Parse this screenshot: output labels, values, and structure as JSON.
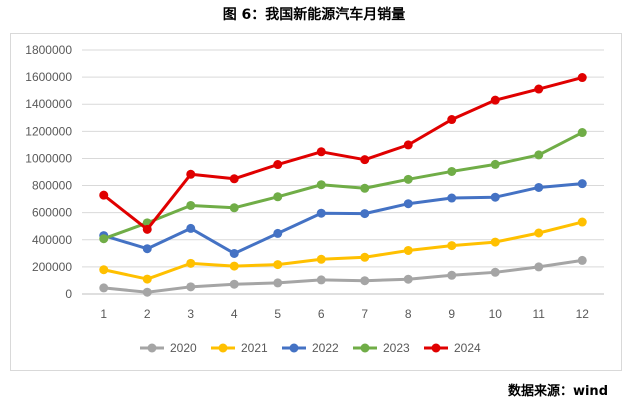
{
  "title": "图 6：我国新能源汽车月销量",
  "source": "数据来源：wind",
  "chart_data": {
    "type": "line",
    "title": "图 6：我国新能源汽车月销量",
    "xlabel": "",
    "ylabel": "",
    "categories": [
      "1",
      "2",
      "3",
      "4",
      "5",
      "6",
      "7",
      "8",
      "9",
      "10",
      "11",
      "12"
    ],
    "ylim": [
      0,
      1800000
    ],
    "yticks": [
      "0",
      "200000",
      "400000",
      "600000",
      "800000",
      "1000000",
      "1200000",
      "1400000",
      "1600000",
      "1800000"
    ],
    "grid": true,
    "legend_position": "bottom",
    "series": [
      {
        "name": "2020",
        "color": "#a5a5a5",
        "values": [
          45000,
          13000,
          53000,
          72000,
          82000,
          104000,
          98000,
          109000,
          138000,
          160000,
          200000,
          248000
        ]
      },
      {
        "name": "2021",
        "color": "#ffc000",
        "values": [
          179000,
          110000,
          226000,
          206000,
          217000,
          256000,
          271000,
          321000,
          357000,
          383000,
          450000,
          531000
        ]
      },
      {
        "name": "2022",
        "color": "#4472c4",
        "values": [
          431000,
          334000,
          484000,
          299000,
          447000,
          596000,
          593000,
          666000,
          708000,
          714000,
          786000,
          814000
        ]
      },
      {
        "name": "2023",
        "color": "#70ad47",
        "values": [
          408000,
          525000,
          653000,
          636000,
          717000,
          806000,
          780000,
          846000,
          904000,
          956000,
          1026000,
          1191000
        ]
      },
      {
        "name": "2024",
        "color": "#e00000",
        "values": [
          729000,
          477000,
          883000,
          850000,
          955000,
          1049000,
          991000,
          1100000,
          1287000,
          1430000,
          1512000,
          1597000
        ]
      }
    ]
  }
}
